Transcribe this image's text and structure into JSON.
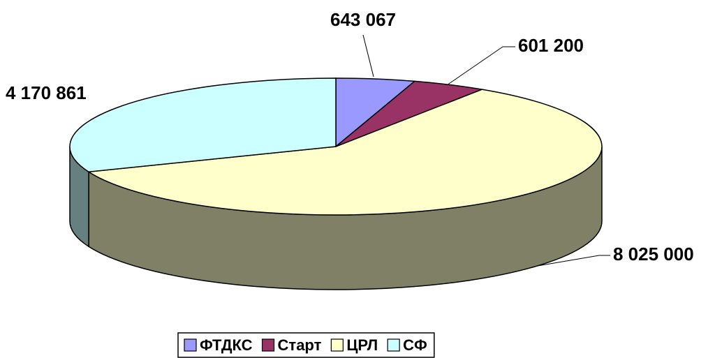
{
  "chart_data": {
    "type": "pie3d",
    "categories": [
      "ФТДКС",
      "Старт",
      "ЦРЛ",
      "СФ"
    ],
    "values": [
      643067,
      601200,
      8025000,
      4170861
    ],
    "value_labels": [
      "643 067",
      "601 200",
      "8 025 000",
      "4 170 861"
    ],
    "colors": [
      "#9999ff",
      "#993366",
      "#ffffcc",
      "#ccffff"
    ],
    "legend": "bottom"
  }
}
